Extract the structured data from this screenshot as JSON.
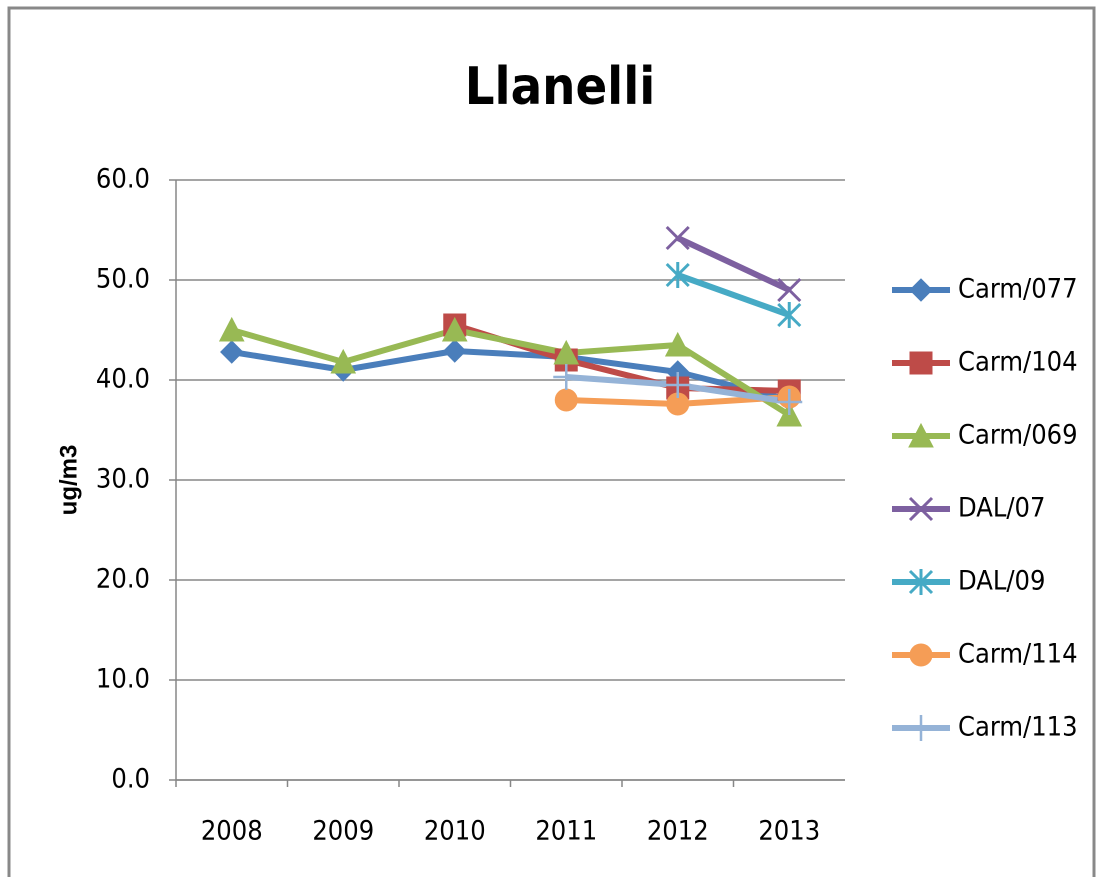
{
  "chart_data": {
    "type": "line",
    "title": "Llanelli",
    "y_label": "ug/m3",
    "categories": [
      "2008",
      "2009",
      "2010",
      "2011",
      "2012",
      "2013"
    ],
    "ylim": [
      0,
      60
    ],
    "yticks": [
      {
        "value": 0,
        "label": "0.0"
      },
      {
        "value": 10,
        "label": "10.0"
      },
      {
        "value": 20,
        "label": "20.0"
      },
      {
        "value": 30,
        "label": "30.0"
      },
      {
        "value": 40,
        "label": "40.0"
      },
      {
        "value": 50,
        "label": "50.0"
      },
      {
        "value": 60,
        "label": "60.0"
      }
    ],
    "grid": true,
    "legend": "right",
    "series": [
      {
        "name": "Carm/077",
        "color": "#4a7ebb",
        "marker": "diamond",
        "values": [
          42.8,
          41.0,
          42.9,
          42.3,
          40.8,
          38.0
        ]
      },
      {
        "name": "Carm/104",
        "color": "#be4b48",
        "marker": "square",
        "values": [
          null,
          null,
          45.5,
          42.0,
          39.2,
          38.9
        ]
      },
      {
        "name": "Carm/069",
        "color": "#98b954",
        "marker": "triangle",
        "values": [
          45.0,
          41.8,
          45.0,
          42.7,
          43.5,
          36.5
        ]
      },
      {
        "name": "DAL/07",
        "color": "#7d60a0",
        "marker": "x",
        "values": [
          null,
          null,
          null,
          null,
          54.2,
          49.0
        ]
      },
      {
        "name": "DAL/09",
        "color": "#46aac5",
        "marker": "star",
        "values": [
          null,
          null,
          null,
          null,
          50.5,
          46.5
        ]
      },
      {
        "name": "Carm/114",
        "color": "#f59d56",
        "marker": "circle",
        "values": [
          null,
          null,
          null,
          38.0,
          37.6,
          38.3
        ]
      },
      {
        "name": "Carm/113",
        "color": "#95b3d7",
        "marker": "plus",
        "values": [
          null,
          null,
          null,
          40.3,
          39.5,
          37.8
        ]
      }
    ]
  }
}
